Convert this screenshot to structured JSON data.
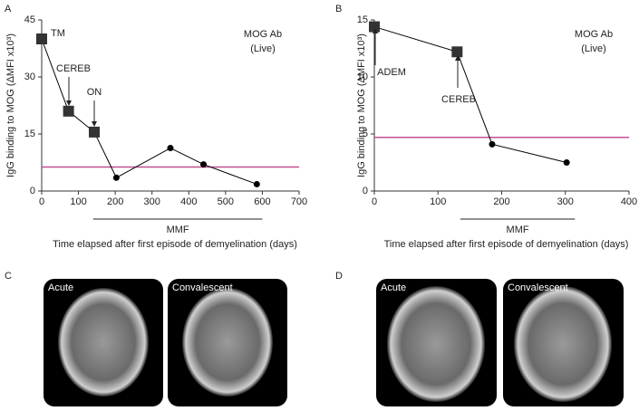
{
  "chart_data": [
    {
      "type": "line",
      "panel": "A",
      "x_label": "Time elapsed after first episode of demyelination (days)",
      "y_label": "IgG binding to MOG (ΔMFI x10³)",
      "label_lines": [
        "MOG Ab",
        "(Live)"
      ],
      "x": [
        0,
        73,
        143,
        203,
        350,
        440,
        585
      ],
      "series": [
        {
          "name": "MOG Ab",
          "color": "#000000",
          "values": [
            40,
            21,
            15.5,
            3.5,
            11.3,
            7,
            1.8
          ],
          "markers": [
            "square",
            "square",
            "square",
            "circle",
            "circle",
            "circle",
            "circle"
          ]
        }
      ],
      "annotations": [
        "TM",
        "CEREB",
        "ON"
      ],
      "threshold": 6.3,
      "threshold_color": "#c0508f",
      "treatment": {
        "label": "MMF",
        "start": 140,
        "end": 600
      },
      "xlim": [
        0,
        700
      ],
      "xticks": [
        0,
        100,
        200,
        300,
        400,
        500,
        600,
        700
      ],
      "ylim": [
        0,
        45
      ],
      "yticks": [
        0,
        15,
        30,
        45
      ]
    },
    {
      "type": "line",
      "panel": "B",
      "x_label": "Time elapsed after first episode of demyelination (days)",
      "y_label": "IgG binding to MOG (ΔMFI x10³)",
      "label_lines": [
        "MOG Ab",
        "(Live)"
      ],
      "x": [
        0,
        130,
        185,
        302
      ],
      "series": [
        {
          "name": "MOG Ab",
          "color": "#000000",
          "values": [
            14.4,
            12.2,
            4.1,
            2.5
          ],
          "markers": [
            "square",
            "square",
            "circle",
            "circle"
          ]
        }
      ],
      "annotations": [
        "ADEM",
        "CEREB"
      ],
      "threshold": 4.7,
      "threshold_color": "#c0508f",
      "treatment": {
        "label": "MMF",
        "start": 135,
        "end": 315
      },
      "xlim": [
        0,
        400
      ],
      "xticks": [
        0,
        100,
        200,
        300,
        400
      ],
      "ylim": [
        0,
        15
      ],
      "yticks": [
        0,
        5,
        10,
        15
      ]
    }
  ],
  "image_panels": [
    {
      "panel": "C",
      "captions": [
        "Acute",
        "Convalescent"
      ]
    },
    {
      "panel": "D",
      "captions": [
        "Acute",
        "Convalescent"
      ]
    }
  ]
}
